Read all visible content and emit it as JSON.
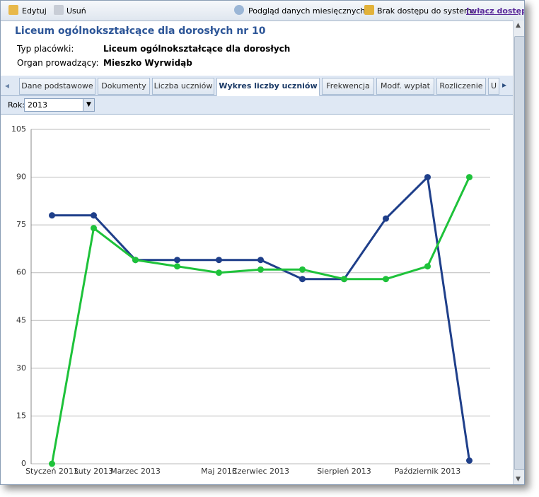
{
  "toolbar": {
    "edit": "Edytuj",
    "delete": "Usuń",
    "preview": "Podgląd danych miesięcznych",
    "access": "Brak dostępu do systemu",
    "access_link": "[włącz dostęp]"
  },
  "header": {
    "title": "Liceum ogólnokształcące dla dorosłych nr 10",
    "fields": [
      {
        "label": "Typ placówki:",
        "value": "Liceum ogólnokształcące dla dorosłych"
      },
      {
        "label": "Organ prowadzący:",
        "value": "Mieszko Wyrwidąb"
      }
    ]
  },
  "tabs": [
    "Dane podstawowe",
    "Dokumenty",
    "Liczba uczniów",
    "Wykres liczby uczniów",
    "Frekwencja",
    "Modf. wypłat",
    "Rozliczenie",
    "U"
  ],
  "year": {
    "label": "Rok:",
    "value": "2013"
  },
  "chart_data": {
    "type": "line",
    "categories": [
      "Styczeń 2013",
      "Luty 2013",
      "Marzec 2013",
      null,
      "Maj 2013",
      "Czerwiec 2013",
      null,
      "Sierpień 2013",
      null,
      "Październik 2013",
      null
    ],
    "series": [
      {
        "color": "#1f3f8a",
        "values": [
          78,
          78,
          64,
          64,
          64,
          64,
          58,
          58,
          77,
          90,
          1
        ]
      },
      {
        "color": "#1ec23a",
        "values": [
          0,
          74,
          64,
          62,
          60,
          61,
          61,
          58,
          58,
          62,
          90
        ]
      }
    ],
    "ylim": [
      0,
      105
    ],
    "yticks": [
      0,
      15,
      30,
      45,
      60,
      75,
      90,
      105
    ],
    "grid": true
  }
}
